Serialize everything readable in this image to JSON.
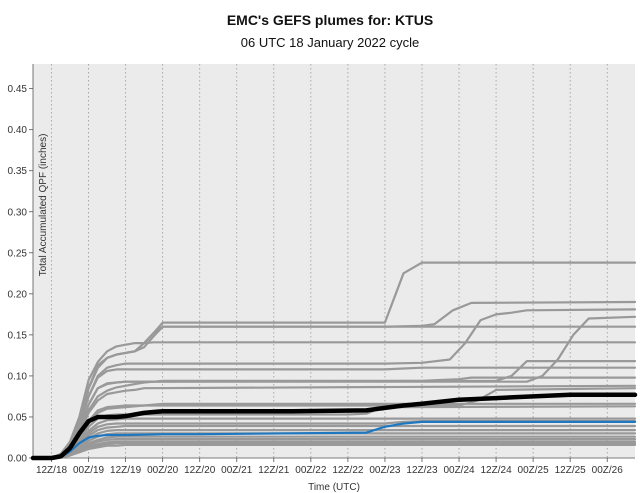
{
  "chart_data": {
    "type": "line",
    "title": "EMC's GEFS plumes for: KTUS",
    "subtitle": "06 UTC 18 January 2022 cycle",
    "xlabel": "Time (UTC)",
    "ylabel": "Total Accumulated QPF (inches)",
    "ylim": [
      0,
      0.48
    ],
    "yticks": [
      0.0,
      0.05,
      0.1,
      0.15,
      0.2,
      0.25,
      0.3,
      0.35,
      0.4,
      0.45
    ],
    "ytick_labels": [
      "0.00",
      "0.05",
      "0.10",
      "0.15",
      "0.20",
      "0.25",
      "0.30",
      "0.35",
      "0.40",
      "0.45"
    ],
    "xlim": [
      0,
      195
    ],
    "xticks": [
      6,
      18,
      30,
      42,
      54,
      66,
      78,
      90,
      102,
      114,
      126,
      138,
      150,
      162,
      174,
      186
    ],
    "xtick_labels": [
      "12Z/18",
      "00Z/19",
      "12Z/19",
      "00Z/20",
      "12Z/20",
      "00Z/21",
      "12Z/21",
      "00Z/22",
      "12Z/22",
      "00Z/23",
      "12Z/23",
      "00Z/24",
      "12Z/24",
      "00Z/25",
      "12Z/25",
      "00Z/26"
    ],
    "grid": "vertical dotted at each 12 h",
    "colors": {
      "members": "#999999",
      "mean": "#000000",
      "control": "#1f77c0"
    },
    "series": [
      {
        "role": "member",
        "x": [
          0,
          6,
          9,
          12,
          15,
          18,
          21,
          24,
          27,
          30,
          33,
          36,
          39,
          195
        ],
        "values": [
          0,
          0,
          0.005,
          0.02,
          0.05,
          0.095,
          0.117,
          0.13,
          0.136,
          0.138,
          0.14,
          0.14,
          0.141,
          0.141
        ]
      },
      {
        "role": "member",
        "x": [
          0,
          6,
          9,
          12,
          15,
          18,
          21,
          24,
          27,
          30,
          33,
          36,
          39,
          42,
          195
        ],
        "values": [
          0,
          0,
          0.004,
          0.018,
          0.045,
          0.085,
          0.113,
          0.122,
          0.126,
          0.128,
          0.13,
          0.135,
          0.148,
          0.16,
          0.16
        ]
      },
      {
        "role": "member",
        "x": [
          0,
          6,
          9,
          12,
          15,
          18,
          21,
          24,
          27,
          30,
          33,
          36,
          39,
          42,
          114,
          120,
          126,
          195
        ],
        "values": [
          0,
          0,
          0.004,
          0.017,
          0.045,
          0.085,
          0.11,
          0.122,
          0.126,
          0.128,
          0.13,
          0.14,
          0.152,
          0.165,
          0.165,
          0.225,
          0.238,
          0.238
        ]
      },
      {
        "role": "member",
        "x": [
          0,
          6,
          9,
          12,
          15,
          18,
          21,
          24,
          27,
          30,
          33,
          36,
          39,
          42,
          114,
          126,
          130,
          136,
          142,
          195
        ],
        "values": [
          0,
          0,
          0.004,
          0.017,
          0.045,
          0.085,
          0.11,
          0.122,
          0.126,
          0.128,
          0.13,
          0.14,
          0.152,
          0.16,
          0.16,
          0.161,
          0.163,
          0.18,
          0.189,
          0.19
        ]
      },
      {
        "role": "member",
        "x": [
          0,
          6,
          9,
          12,
          15,
          18,
          21,
          24,
          27,
          30,
          114,
          126,
          135,
          140,
          145,
          150,
          155,
          160,
          195
        ],
        "values": [
          0,
          0,
          0.003,
          0.015,
          0.04,
          0.075,
          0.1,
          0.11,
          0.113,
          0.115,
          0.115,
          0.116,
          0.12,
          0.14,
          0.168,
          0.175,
          0.177,
          0.18,
          0.181
        ]
      },
      {
        "role": "member",
        "x": [
          0,
          6,
          9,
          12,
          15,
          18,
          21,
          24,
          27,
          30,
          160,
          165,
          170,
          175,
          180,
          195
        ],
        "values": [
          0,
          0,
          0.003,
          0.014,
          0.035,
          0.065,
          0.085,
          0.09,
          0.092,
          0.093,
          0.093,
          0.1,
          0.12,
          0.15,
          0.17,
          0.172
        ]
      },
      {
        "role": "member",
        "x": [
          0,
          6,
          9,
          12,
          15,
          18,
          21,
          24,
          27,
          30,
          114,
          120,
          126,
          195
        ],
        "values": [
          0,
          0,
          0.003,
          0.014,
          0.04,
          0.075,
          0.098,
          0.106,
          0.108,
          0.108,
          0.108,
          0.109,
          0.11,
          0.11
        ]
      },
      {
        "role": "member",
        "x": [
          0,
          6,
          9,
          12,
          15,
          18,
          21,
          24,
          27,
          30,
          150,
          155,
          160,
          195
        ],
        "values": [
          0,
          0,
          0.003,
          0.013,
          0.035,
          0.065,
          0.085,
          0.091,
          0.092,
          0.093,
          0.094,
          0.1,
          0.118,
          0.118
        ]
      },
      {
        "role": "member",
        "x": [
          0,
          6,
          9,
          12,
          15,
          18,
          21,
          24,
          27,
          30,
          33,
          36,
          39,
          42,
          126,
          132,
          138,
          142,
          195
        ],
        "values": [
          0,
          0,
          0.003,
          0.012,
          0.032,
          0.058,
          0.075,
          0.082,
          0.086,
          0.088,
          0.09,
          0.092,
          0.093,
          0.094,
          0.094,
          0.095,
          0.096,
          0.098,
          0.098
        ]
      },
      {
        "role": "member",
        "x": [
          0,
          6,
          9,
          12,
          15,
          18,
          21,
          24,
          27,
          30,
          33,
          36,
          195
        ],
        "values": [
          0,
          0,
          0.003,
          0.012,
          0.03,
          0.055,
          0.07,
          0.078,
          0.08,
          0.082,
          0.083,
          0.085,
          0.088
        ]
      },
      {
        "role": "member",
        "x": [
          0,
          6,
          9,
          12,
          15,
          18,
          21,
          24,
          27,
          30,
          138,
          144,
          150,
          195
        ],
        "values": [
          0,
          0,
          0.002,
          0.01,
          0.026,
          0.045,
          0.058,
          0.062,
          0.063,
          0.064,
          0.064,
          0.07,
          0.083,
          0.085
        ]
      },
      {
        "role": "member",
        "x": [
          0,
          6,
          9,
          12,
          15,
          18,
          21,
          24,
          27,
          30,
          36,
          42,
          195
        ],
        "values": [
          0,
          0,
          0.002,
          0.01,
          0.025,
          0.042,
          0.055,
          0.06,
          0.061,
          0.062,
          0.064,
          0.066,
          0.066
        ]
      },
      {
        "role": "member",
        "x": [
          0,
          6,
          9,
          12,
          15,
          18,
          21,
          24,
          27,
          30,
          102,
          108,
          112,
          118,
          195
        ],
        "values": [
          0,
          0,
          0.002,
          0.009,
          0.022,
          0.038,
          0.048,
          0.052,
          0.053,
          0.053,
          0.053,
          0.054,
          0.06,
          0.062,
          0.063
        ]
      },
      {
        "role": "member",
        "x": [
          0,
          6,
          9,
          12,
          15,
          18,
          21,
          24,
          27,
          30,
          195
        ],
        "values": [
          0,
          0,
          0.002,
          0.008,
          0.02,
          0.033,
          0.042,
          0.046,
          0.047,
          0.048,
          0.048
        ]
      },
      {
        "role": "member",
        "x": [
          0,
          6,
          9,
          12,
          15,
          18,
          21,
          24,
          27,
          30,
          114,
          120,
          126,
          195
        ],
        "values": [
          0,
          0,
          0.002,
          0.007,
          0.018,
          0.03,
          0.038,
          0.041,
          0.042,
          0.042,
          0.042,
          0.044,
          0.045,
          0.045
        ]
      },
      {
        "role": "member",
        "x": [
          0,
          6,
          9,
          12,
          15,
          18,
          21,
          24,
          27,
          30,
          195
        ],
        "values": [
          0,
          0,
          0.002,
          0.007,
          0.016,
          0.027,
          0.034,
          0.037,
          0.038,
          0.039,
          0.039
        ]
      },
      {
        "role": "member",
        "x": [
          0,
          6,
          9,
          12,
          15,
          18,
          21,
          24,
          27,
          30,
          195
        ],
        "values": [
          0,
          0,
          0.002,
          0.006,
          0.014,
          0.024,
          0.03,
          0.033,
          0.034,
          0.034,
          0.034
        ]
      },
      {
        "role": "member",
        "x": [
          0,
          6,
          9,
          12,
          15,
          18,
          21,
          24,
          27,
          30,
          195
        ],
        "values": [
          0,
          0,
          0.001,
          0.005,
          0.012,
          0.021,
          0.026,
          0.029,
          0.03,
          0.03,
          0.03
        ]
      },
      {
        "role": "member",
        "x": [
          0,
          6,
          9,
          12,
          15,
          18,
          21,
          24,
          27,
          30,
          195
        ],
        "values": [
          0,
          0,
          0.001,
          0.005,
          0.011,
          0.018,
          0.022,
          0.025,
          0.026,
          0.026,
          0.026
        ]
      },
      {
        "role": "member",
        "x": [
          0,
          6,
          9,
          12,
          15,
          18,
          21,
          24,
          27,
          30,
          195
        ],
        "values": [
          0,
          0,
          0.001,
          0.004,
          0.01,
          0.016,
          0.02,
          0.022,
          0.023,
          0.023,
          0.023
        ]
      },
      {
        "role": "member",
        "x": [
          0,
          6,
          9,
          12,
          15,
          18,
          21,
          24,
          27,
          30,
          195
        ],
        "values": [
          0,
          0,
          0.001,
          0.004,
          0.009,
          0.014,
          0.017,
          0.019,
          0.02,
          0.02,
          0.02
        ]
      },
      {
        "role": "member",
        "x": [
          0,
          6,
          9,
          12,
          15,
          18,
          21,
          24,
          27,
          30,
          195
        ],
        "values": [
          0,
          0,
          0.001,
          0.003,
          0.008,
          0.012,
          0.015,
          0.017,
          0.018,
          0.018,
          0.018
        ]
      },
      {
        "role": "member",
        "x": [
          0,
          6,
          9,
          12,
          15,
          18,
          21,
          24,
          27,
          30,
          195
        ],
        "values": [
          0,
          0,
          0.001,
          0.003,
          0.007,
          0.011,
          0.013,
          0.015,
          0.015,
          0.016,
          0.016
        ]
      },
      {
        "role": "mean",
        "x": [
          0,
          6,
          9,
          12,
          15,
          18,
          21,
          24,
          27,
          30,
          33,
          36,
          39,
          42,
          48,
          60,
          84,
          108,
          114,
          120,
          126,
          138,
          150,
          162,
          174,
          195
        ],
        "values": [
          0,
          0,
          0.002,
          0.012,
          0.03,
          0.045,
          0.05,
          0.05,
          0.05,
          0.051,
          0.053,
          0.055,
          0.056,
          0.057,
          0.057,
          0.057,
          0.057,
          0.058,
          0.061,
          0.064,
          0.066,
          0.071,
          0.073,
          0.075,
          0.077,
          0.077
        ]
      },
      {
        "role": "control",
        "x": [
          0,
          6,
          9,
          12,
          15,
          18,
          21,
          24,
          27,
          30,
          42,
          54,
          108,
          114,
          120,
          126,
          195
        ],
        "values": [
          0,
          0,
          0.001,
          0.008,
          0.018,
          0.025,
          0.027,
          0.028,
          0.028,
          0.028,
          0.029,
          0.029,
          0.031,
          0.038,
          0.042,
          0.044,
          0.044
        ]
      }
    ]
  }
}
